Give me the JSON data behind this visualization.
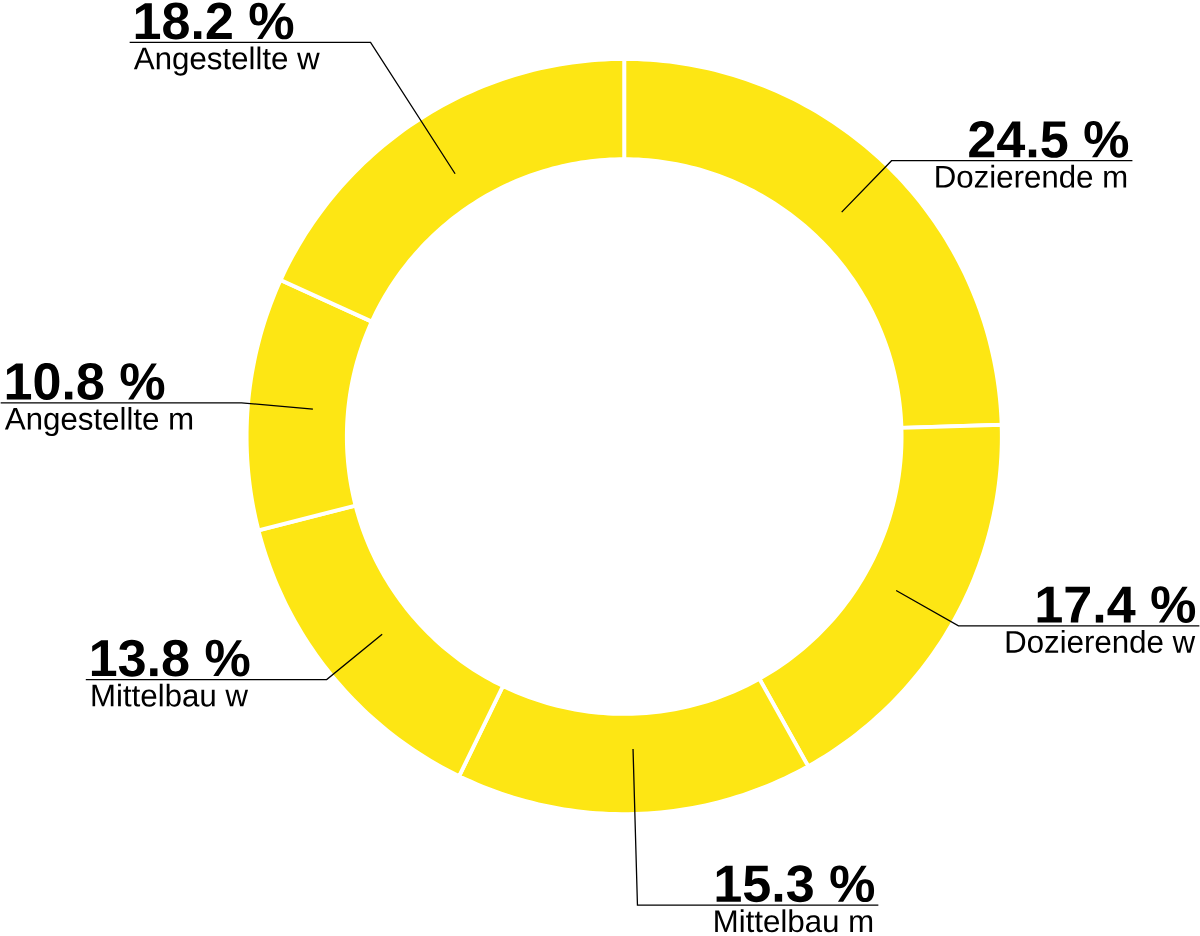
{
  "chart_data": {
    "type": "donut",
    "categories": [
      "Dozierende m",
      "Dozierende w",
      "Mittelbau m",
      "Mittelbau w",
      "Angestellte m",
      "Angestellte w"
    ],
    "values": [
      24.5,
      17.4,
      15.3,
      13.8,
      10.8,
      18.2
    ],
    "value_labels": [
      "24.5 %",
      "17.4 %",
      "15.3 %",
      "13.8 %",
      "10.8 %",
      "18.2 %"
    ],
    "colors": [
      "#fde614",
      "#fde614",
      "#fde614",
      "#fde614",
      "#fde614",
      "#fde614"
    ]
  }
}
